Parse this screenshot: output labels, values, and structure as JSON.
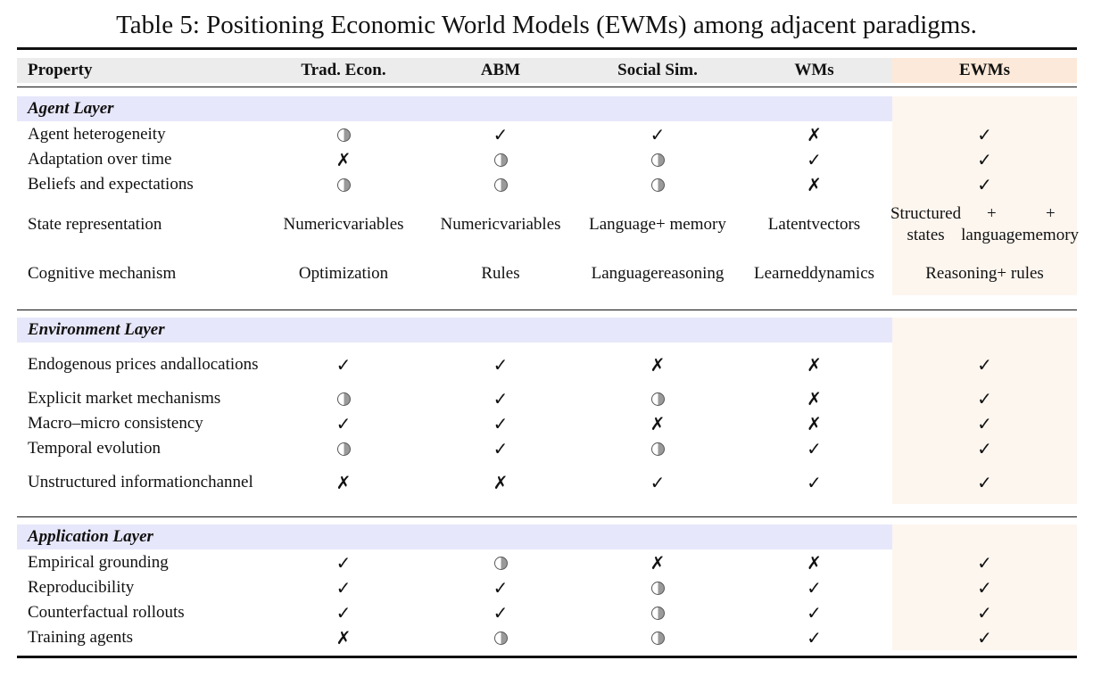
{
  "caption": "Table 5: Positioning Economic World Models (EWMs) among adjacent paradigms.",
  "columns": [
    "Property",
    "Trad. Econ.",
    "ABM",
    "Social Sim.",
    "WMs",
    "EWMs"
  ],
  "symbols": {
    "check": {
      "icon": "check-icon",
      "glyph": "✓"
    },
    "cross": {
      "icon": "cross-icon",
      "glyph": "✗"
    },
    "half": {
      "icon": "half-circle-icon"
    }
  },
  "colors": {
    "header_band": "#ececec",
    "ewm_highlight": "#fde9d9",
    "ewm_column": "#fdf6ef",
    "layer_band": "#e7e7fb"
  },
  "sections": [
    {
      "title": "Agent Layer",
      "rows": [
        {
          "property": [
            "Agent heterogeneity"
          ],
          "cells": [
            "half",
            "check",
            "check",
            "cross",
            "check"
          ]
        },
        {
          "property": [
            "Adaptation over time"
          ],
          "cells": [
            "cross",
            "half",
            "half",
            "check",
            "check"
          ]
        },
        {
          "property": [
            "Beliefs and expectations"
          ],
          "cells": [
            "half",
            "half",
            "half",
            "cross",
            "check"
          ]
        },
        {
          "property": [
            "State representation"
          ],
          "cells": [
            [
              "Numeric",
              "variables"
            ],
            [
              "Numeric",
              "variables"
            ],
            [
              "Language",
              "+ memory"
            ],
            [
              "Latent",
              "vectors"
            ],
            [
              "Structured states",
              "+ language",
              "+ memory"
            ]
          ]
        },
        {
          "property": [
            "Cognitive mechanism"
          ],
          "cells": [
            [
              "Optimization"
            ],
            [
              "Rules"
            ],
            [
              "Language",
              "reasoning"
            ],
            [
              "Learned",
              "dynamics"
            ],
            [
              "Reasoning",
              "+ rules"
            ]
          ]
        }
      ]
    },
    {
      "title": "Environment Layer",
      "rows": [
        {
          "property": [
            "Endogenous prices and",
            "allocations"
          ],
          "cells": [
            "check",
            "check",
            "cross",
            "cross",
            "check"
          ]
        },
        {
          "property": [
            "Explicit market mechanisms"
          ],
          "cells": [
            "half",
            "check",
            "half",
            "cross",
            "check"
          ]
        },
        {
          "property": [
            "Macro–micro consistency"
          ],
          "cells": [
            "check",
            "check",
            "cross",
            "cross",
            "check"
          ]
        },
        {
          "property": [
            "Temporal evolution"
          ],
          "cells": [
            "half",
            "check",
            "half",
            "check",
            "check"
          ]
        },
        {
          "property": [
            "Unstructured information",
            "channel"
          ],
          "cells": [
            "cross",
            "cross",
            "check",
            "check",
            "check"
          ]
        }
      ]
    },
    {
      "title": "Application Layer",
      "rows": [
        {
          "property": [
            "Empirical grounding"
          ],
          "cells": [
            "check",
            "half",
            "cross",
            "cross",
            "check"
          ]
        },
        {
          "property": [
            "Reproducibility"
          ],
          "cells": [
            "check",
            "check",
            "half",
            "check",
            "check"
          ]
        },
        {
          "property": [
            "Counterfactual rollouts"
          ],
          "cells": [
            "check",
            "check",
            "half",
            "check",
            "check"
          ]
        },
        {
          "property": [
            "Training agents"
          ],
          "cells": [
            "cross",
            "half",
            "half",
            "check",
            "check"
          ]
        }
      ]
    }
  ]
}
